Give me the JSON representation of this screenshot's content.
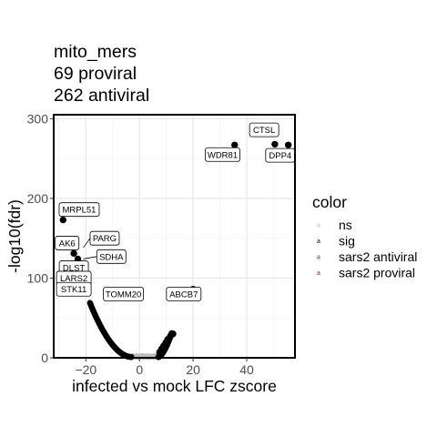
{
  "title_lines": [
    "mito_mers",
    "69 proviral",
    "262 antiviral"
  ],
  "chart_data": {
    "type": "scatter",
    "xlabel": "infected vs mock LFC zscore",
    "ylabel": "-log10(fdr)",
    "xlim": [
      -32,
      58
    ],
    "ylim": [
      0,
      305
    ],
    "x_ticks": [
      -20,
      0,
      20,
      40
    ],
    "x_tick_labels": [
      "−20",
      "0",
      "20",
      "40"
    ],
    "y_ticks": [
      0,
      100,
      200,
      300
    ],
    "y_tick_labels": [
      "0",
      "100",
      "200",
      "300"
    ],
    "grid": true,
    "legend_position": "right",
    "legend": {
      "title": "color",
      "items": [
        {
          "label": "ns",
          "color": "#bdbdbd"
        },
        {
          "label": "sig",
          "color": "#000000"
        },
        {
          "label": "sars2 antiviral",
          "color": "#3b3b8f"
        },
        {
          "label": "sars2 proviral",
          "color": "#8b1a3a"
        }
      ]
    },
    "ns_band": {
      "x_range": [
        -2.5,
        6.5
      ],
      "y_max": 2
    },
    "curves": [
      {
        "name": "left",
        "x_range": [
          -18.5,
          -3
        ],
        "y_at_edge": 68
      },
      {
        "name": "right",
        "x_range": [
          7,
          12
        ],
        "y_at_edge": 30
      }
    ],
    "points": [
      {
        "x": 35.5,
        "y": 267
      },
      {
        "x": 50.5,
        "y": 268
      },
      {
        "x": 55.5,
        "y": 267
      },
      {
        "x": -28.5,
        "y": 173
      },
      {
        "x": -24.5,
        "y": 131
      },
      {
        "x": -23,
        "y": 124
      },
      {
        "x": 20,
        "y": 86
      },
      {
        "x": 12.5,
        "y": 30
      },
      {
        "x": 11.5,
        "y": 27
      },
      {
        "x": 10.5,
        "y": 23
      },
      {
        "x": 9.8,
        "y": 19
      },
      {
        "x": 9,
        "y": 15
      },
      {
        "x": 8.2,
        "y": 11
      },
      {
        "x": 7.5,
        "y": 7
      }
    ],
    "annotations": [
      {
        "text": "CTSL",
        "x": 46.5,
        "y": 286
      },
      {
        "text": "WDR81",
        "x": 31,
        "y": 255
      },
      {
        "text": "DPP4",
        "x": 52.5,
        "y": 254
      },
      {
        "text": "MRPL51",
        "x": -22.5,
        "y": 186
      },
      {
        "text": "PARG",
        "x": -13,
        "y": 150
      },
      {
        "text": "AK6",
        "x": -27,
        "y": 144
      },
      {
        "text": "SDHA",
        "x": -10.5,
        "y": 127
      },
      {
        "text": "DLST",
        "x": -24.5,
        "y": 113
      },
      {
        "text": "LARS2",
        "x": -24.5,
        "y": 100
      },
      {
        "text": "STK11",
        "x": -24.5,
        "y": 86
      },
      {
        "text": "TOMM20",
        "x": -6,
        "y": 80
      },
      {
        "text": "ABCB7",
        "x": 16.5,
        "y": 80
      }
    ]
  }
}
